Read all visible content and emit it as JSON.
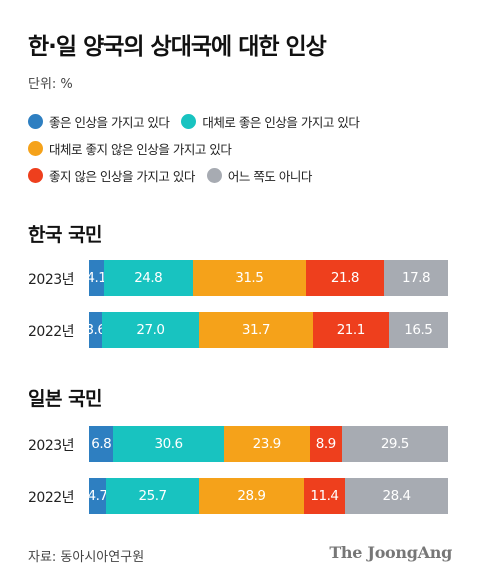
{
  "title": "한·일 양국의 상대국에 대한 인상",
  "unit": "단위: %",
  "source": "자료: 동아시아연구원",
  "brand": "The JoongAng",
  "colors": {
    "very_good": "#2e7fc1",
    "fairly_good": "#18c3c0",
    "fairly_bad": "#f5a21a",
    "very_bad": "#ee3f1d",
    "neutral": "#a7abb2"
  },
  "chart_data": {
    "type": "bar",
    "stacked": true,
    "orientation": "horizontal",
    "xlim": [
      0,
      100
    ],
    "legend": [
      {
        "key": "very_good",
        "name": "좋은 인상을 가지고 있다"
      },
      {
        "key": "fairly_good",
        "name": "대체로 좋은 인상을 가지고 있다"
      },
      {
        "key": "fairly_bad",
        "name": "대체로 좋지 않은 인상을 가지고 있다"
      },
      {
        "key": "very_bad",
        "name": "좋지 않은 인상을 가지고 있다"
      },
      {
        "key": "neutral",
        "name": "어느 쪽도 아니다"
      }
    ],
    "groups": [
      {
        "title": "한국 국민",
        "rows": [
          {
            "year": "2023년",
            "values": [
              4.1,
              24.8,
              31.5,
              21.8,
              17.8
            ]
          },
          {
            "year": "2022년",
            "values": [
              3.6,
              27.0,
              31.7,
              21.1,
              16.5
            ]
          }
        ]
      },
      {
        "title": "일본 국민",
        "rows": [
          {
            "year": "2023년",
            "values": [
              6.8,
              30.6,
              23.9,
              8.9,
              29.5
            ]
          },
          {
            "year": "2022년",
            "values": [
              4.7,
              25.7,
              28.9,
              11.4,
              28.4
            ]
          }
        ]
      }
    ]
  }
}
